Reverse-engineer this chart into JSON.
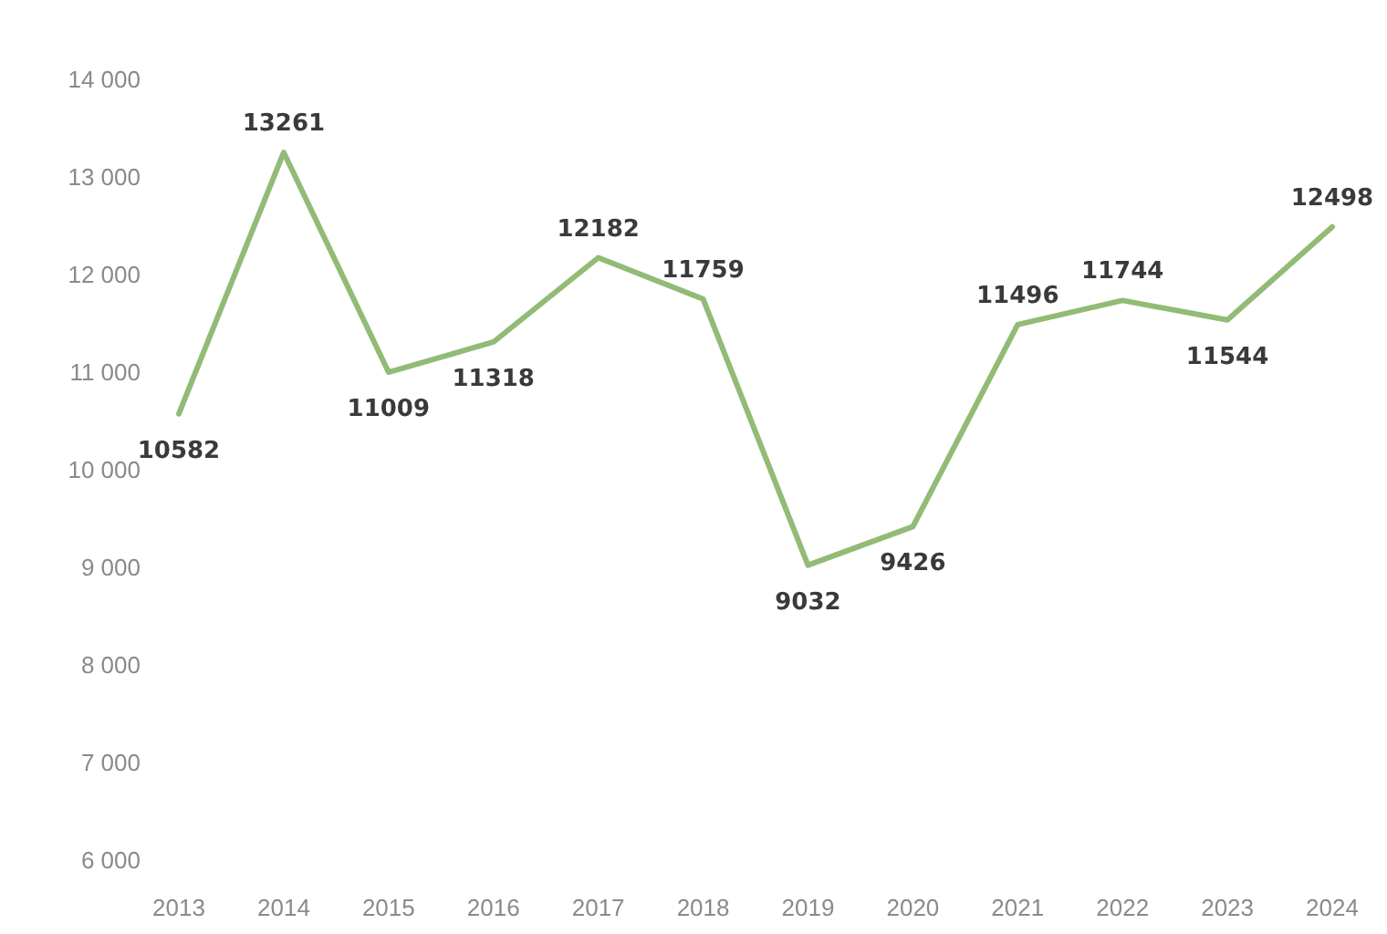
{
  "chart_data": {
    "type": "line",
    "categories": [
      "2013",
      "2014",
      "2015",
      "2016",
      "2017",
      "2018",
      "2019",
      "2020",
      "2021",
      "2022",
      "2023",
      "2024"
    ],
    "series": [
      {
        "color": "#92bb76",
        "values": [
          10582,
          13261,
          11009,
          11318,
          12182,
          11759,
          9032,
          9426,
          11496,
          11744,
          11544,
          12498
        ]
      }
    ],
    "ylim": [
      6000,
      14000
    ],
    "yticks": [
      {
        "value": 6000,
        "label": "6 000"
      },
      {
        "value": 7000,
        "label": "7 000"
      },
      {
        "value": 8000,
        "label": "8 000"
      },
      {
        "value": 9000,
        "label": "9 000"
      },
      {
        "value": 10000,
        "label": "10 000"
      },
      {
        "value": 11000,
        "label": "11 000"
      },
      {
        "value": 12000,
        "label": "12 000"
      },
      {
        "value": 13000,
        "label": "13 000"
      },
      {
        "value": 14000,
        "label": "14 000"
      }
    ],
    "data_labels": true,
    "grid": false,
    "marker": "none",
    "line_style": "solid"
  }
}
